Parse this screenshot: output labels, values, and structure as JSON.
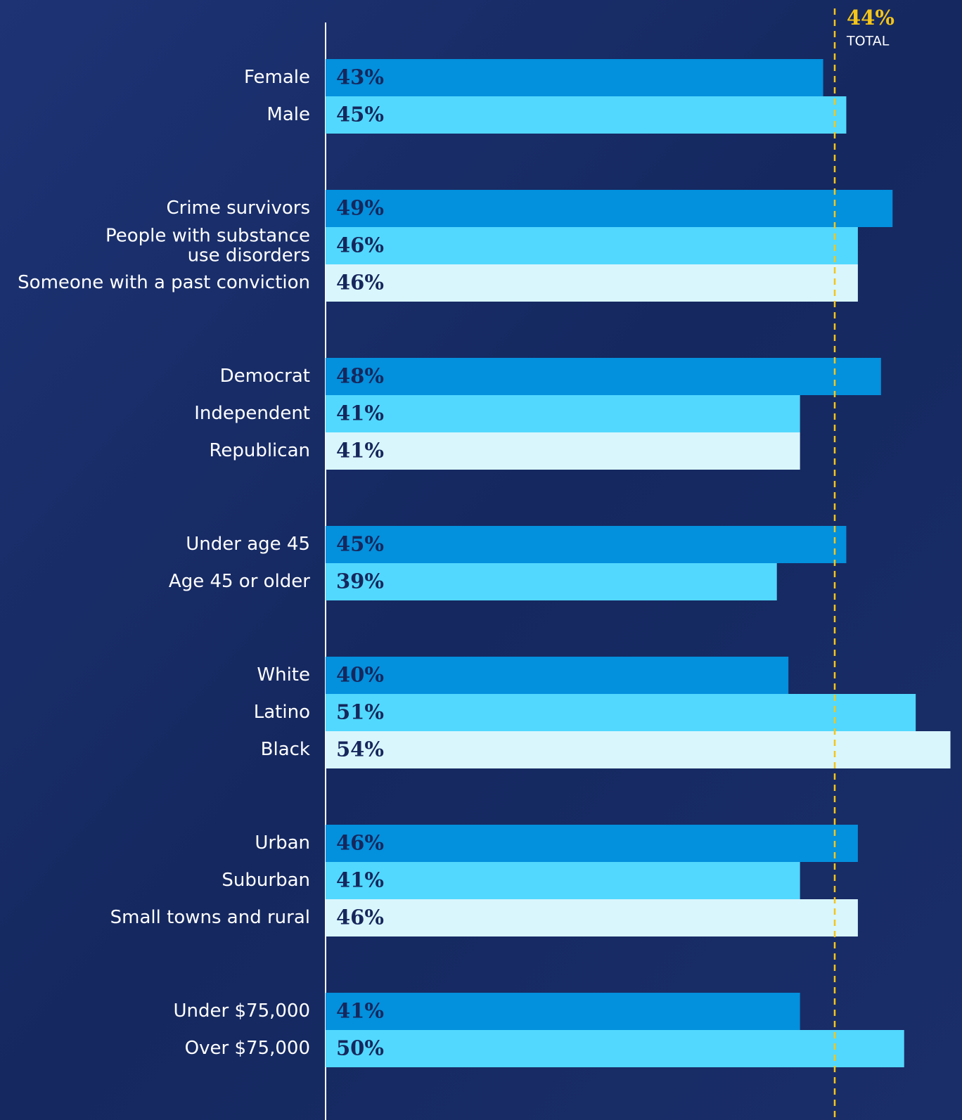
{
  "chart_data": {
    "type": "bar",
    "orientation": "horizontal",
    "xlim": [
      0,
      55
    ],
    "colors": [
      "#0390dd",
      "#52d8fe",
      "#d9f6fd"
    ],
    "reference": {
      "value": 44,
      "value_label": "44%",
      "label": "TOTAL",
      "color": "#f5c518"
    },
    "groups": [
      {
        "categories": [
          "Female",
          "Male"
        ],
        "values": [
          43,
          45
        ],
        "value_labels": [
          "43%",
          "45%"
        ]
      },
      {
        "categories": [
          "Crime survivors",
          "People with substance\nuse disorders",
          "Someone with a past conviction"
        ],
        "values": [
          49,
          46,
          46
        ],
        "value_labels": [
          "49%",
          "46%",
          "46%"
        ]
      },
      {
        "categories": [
          "Democrat",
          "Independent",
          "Republican"
        ],
        "values": [
          48,
          41,
          41
        ],
        "value_labels": [
          "48%",
          "41%",
          "41%"
        ]
      },
      {
        "categories": [
          "Under age 45",
          "Age 45 or older"
        ],
        "values": [
          45,
          39
        ],
        "value_labels": [
          "45%",
          "39%"
        ]
      },
      {
        "categories": [
          "White",
          "Latino",
          "Black"
        ],
        "values": [
          40,
          51,
          54
        ],
        "value_labels": [
          "40%",
          "51%",
          "54%"
        ]
      },
      {
        "categories": [
          "Urban",
          "Suburban",
          "Small towns and rural"
        ],
        "values": [
          46,
          41,
          46
        ],
        "value_labels": [
          "46%",
          "41%",
          "46%"
        ]
      },
      {
        "categories": [
          "Under $75,000",
          "Over $75,000"
        ],
        "values": [
          41,
          50
        ],
        "value_labels": [
          "41%",
          "50%"
        ]
      }
    ]
  }
}
